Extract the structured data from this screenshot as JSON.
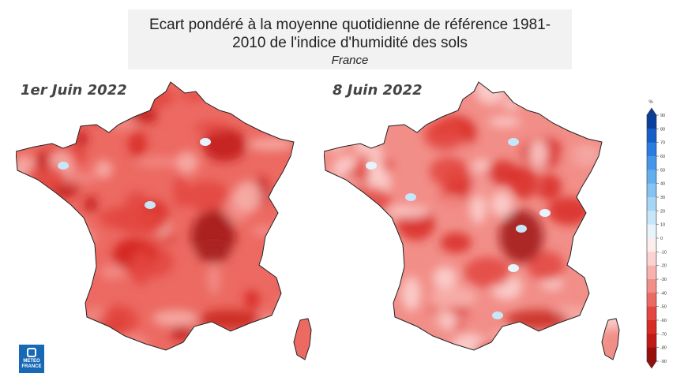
{
  "title": {
    "main": "Ecart pondéré à la moyenne quotidienne de référence 1981-2010 de l'indice d'humidité des sols",
    "region": "France"
  },
  "maps": [
    {
      "date_label": "1er Juin 2022",
      "overall_anomaly": -50,
      "light_spots": 3
    },
    {
      "date_label": "8 Juin 2022",
      "overall_anomaly": -35,
      "light_spots": 7
    }
  ],
  "legend": {
    "unit": "%",
    "ticks": [
      "90",
      "80",
      "70",
      "60",
      "50",
      "40",
      "30",
      "20",
      "10",
      "0",
      "-10",
      "-20",
      "-30",
      "-40",
      "-50",
      "-60",
      "-70",
      "-80",
      "-90"
    ],
    "colors": [
      "#0a3f9e",
      "#1560c8",
      "#2a7de0",
      "#4595ea",
      "#62aeee",
      "#84c3f2",
      "#a6d6f6",
      "#c8e6fa",
      "#e8f4fc",
      "#fdeeee",
      "#fbd3d1",
      "#f7b2ad",
      "#f28e88",
      "#ec6a62",
      "#e3473f",
      "#d82b24",
      "#c11a14",
      "#9a0e0a"
    ]
  },
  "logo": {
    "line1": "METEO",
    "line2": "FRANCE"
  }
}
